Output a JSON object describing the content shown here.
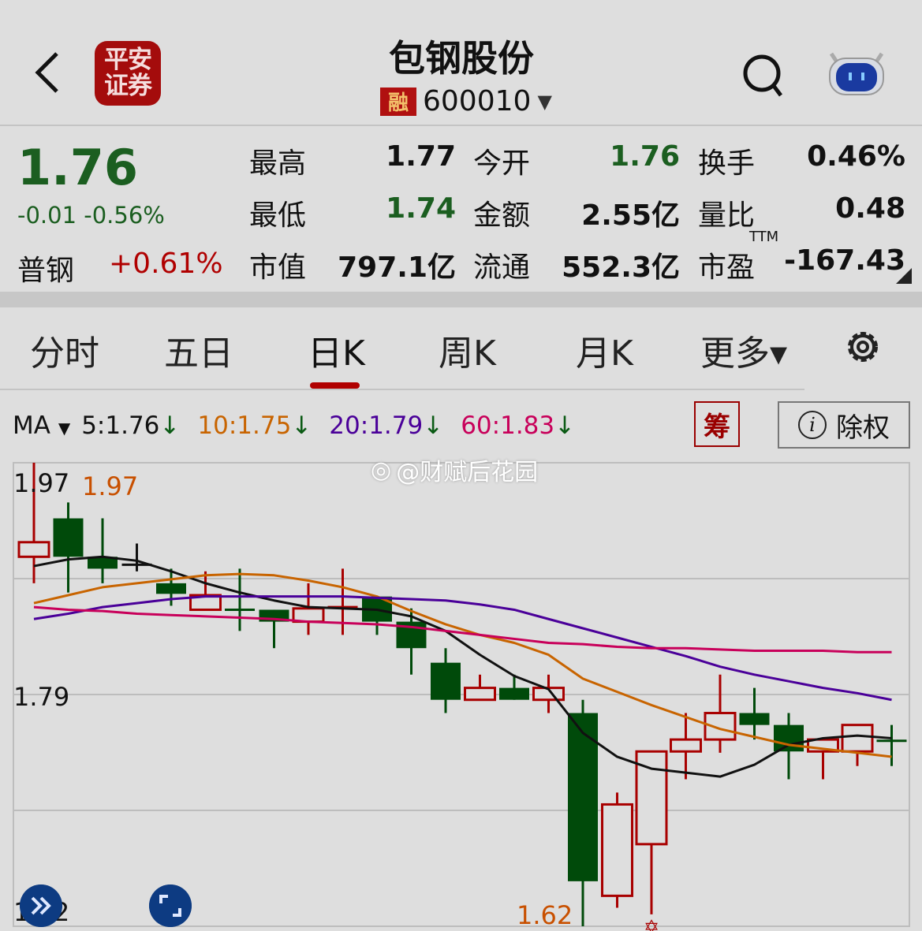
{
  "header": {
    "title": "包钢股份",
    "code": "600010",
    "margin_badge": "融",
    "broker_logo": "平安证券",
    "icons": [
      "back-icon",
      "search-icon",
      "robot-assistant-icon",
      "dropdown-triangle-icon"
    ]
  },
  "quote": {
    "price": "1.76",
    "change": "-0.01",
    "change_pct": "-0.56%",
    "sector_name": "普钢",
    "sector_change": "+0.61%",
    "rows": [
      [
        {
          "label": "最高",
          "value": "1.77",
          "color": "black"
        },
        {
          "label": "今开",
          "value": "1.76",
          "color": "green"
        },
        {
          "label": "换手",
          "value": "0.46%",
          "color": "black"
        }
      ],
      [
        {
          "label": "最低",
          "value": "1.74",
          "color": "green"
        },
        {
          "label": "金额",
          "value": "2.55亿",
          "color": "black"
        },
        {
          "label": "量比",
          "value": "0.48",
          "color": "black"
        }
      ],
      [
        {
          "label": "市值",
          "value": "797.1亿",
          "color": "black"
        },
        {
          "label": "流通",
          "value": "552.3亿",
          "color": "black"
        },
        {
          "label": "市盈",
          "value": "-167.43",
          "color": "black"
        }
      ]
    ],
    "pe_superscript": "TTM"
  },
  "tabs": [
    {
      "label": "分时"
    },
    {
      "label": "五日"
    },
    {
      "label": "日K",
      "active": true
    },
    {
      "label": "周K"
    },
    {
      "label": "月K"
    },
    {
      "label": "更多▾"
    }
  ],
  "indicator": {
    "name": "MA",
    "items": [
      {
        "text": "5:1.76",
        "color": "#111111"
      },
      {
        "text": "10:1.75",
        "color": "#c86400"
      },
      {
        "text": "20:1.79",
        "color": "#4a0099"
      },
      {
        "text": "60:1.83",
        "color": "#c8005a"
      }
    ],
    "arrow": "↓",
    "chip_button": "筹",
    "adjust_button": "除权"
  },
  "watermark": "@财赋后花园",
  "colors": {
    "up": "#a80000",
    "down": "#004a0a",
    "accent": "#b00000",
    "green_text": "#1b5e20"
  },
  "chart_data": {
    "type": "candlestick",
    "ylim": [
      1.62,
      1.97
    ],
    "y_tick_labels": [
      "1.97",
      "1.79",
      "1.62"
    ],
    "high_label": "1.97",
    "low_label": "1.62",
    "candles": [
      {
        "o": 1.899,
        "c": 1.91,
        "h": 1.97,
        "l": 1.879
      },
      {
        "o": 1.928,
        "c": 1.899,
        "h": 1.94,
        "l": 1.872
      },
      {
        "o": 1.899,
        "c": 1.89,
        "h": 1.928,
        "l": 1.879
      },
      {
        "o": 1.893,
        "c": 1.893,
        "h": 1.909,
        "l": 1.888,
        "flat": "black"
      },
      {
        "o": 1.879,
        "c": 1.871,
        "h": 1.89,
        "l": 1.862
      },
      {
        "o": 1.859,
        "c": 1.87,
        "h": 1.888,
        "l": 1.859
      },
      {
        "o": 1.859,
        "c": 1.859,
        "h": 1.89,
        "l": 1.843,
        "flat": "down"
      },
      {
        "o": 1.859,
        "c": 1.85,
        "h": 1.859,
        "l": 1.83
      },
      {
        "o": 1.85,
        "c": 1.86,
        "h": 1.879,
        "l": 1.84
      },
      {
        "o": 1.861,
        "c": 1.861,
        "h": 1.89,
        "l": 1.84,
        "flat": "up"
      },
      {
        "o": 1.869,
        "c": 1.85,
        "h": 1.869,
        "l": 1.84
      },
      {
        "o": 1.85,
        "c": 1.83,
        "h": 1.86,
        "l": 1.81
      },
      {
        "o": 1.819,
        "c": 1.791,
        "h": 1.83,
        "l": 1.781
      },
      {
        "o": 1.791,
        "c": 1.8,
        "h": 1.81,
        "l": 1.791
      },
      {
        "o": 1.8,
        "c": 1.791,
        "h": 1.81,
        "l": 1.791
      },
      {
        "o": 1.791,
        "c": 1.8,
        "h": 1.81,
        "l": 1.781
      },
      {
        "o": 1.781,
        "c": 1.654,
        "h": 1.791,
        "l": 1.62
      },
      {
        "o": 1.643,
        "c": 1.712,
        "h": 1.721,
        "l": 1.634
      },
      {
        "o": 1.682,
        "c": 1.752,
        "h": 1.752,
        "l": 1.629,
        "marker": "star"
      },
      {
        "o": 1.752,
        "c": 1.761,
        "h": 1.781,
        "l": 1.731
      },
      {
        "o": 1.761,
        "c": 1.781,
        "h": 1.81,
        "l": 1.751
      },
      {
        "o": 1.781,
        "c": 1.772,
        "h": 1.8,
        "l": 1.761
      },
      {
        "o": 1.772,
        "c": 1.752,
        "h": 1.781,
        "l": 1.731
      },
      {
        "o": 1.752,
        "c": 1.761,
        "h": 1.761,
        "l": 1.731
      },
      {
        "o": 1.752,
        "c": 1.772,
        "h": 1.772,
        "l": 1.741
      },
      {
        "o": 1.76,
        "c": 1.76,
        "h": 1.772,
        "l": 1.741,
        "flat": "down"
      }
    ],
    "series": [
      {
        "name": "MA5",
        "color": "#111111",
        "values": [
          1.892,
          1.897,
          1.899,
          1.896,
          1.888,
          1.879,
          1.872,
          1.866,
          1.861,
          1.86,
          1.859,
          1.854,
          1.843,
          1.825,
          1.809,
          1.799,
          1.766,
          1.748,
          1.739,
          1.736,
          1.733,
          1.742,
          1.757,
          1.762,
          1.764,
          1.762
        ]
      },
      {
        "name": "MA10",
        "color": "#c86400",
        "values": [
          1.864,
          1.87,
          1.876,
          1.879,
          1.882,
          1.885,
          1.886,
          1.885,
          1.881,
          1.876,
          1.869,
          1.858,
          1.848,
          1.84,
          1.834,
          1.825,
          1.807,
          1.797,
          1.787,
          1.778,
          1.769,
          1.763,
          1.757,
          1.754,
          1.751,
          1.748
        ]
      },
      {
        "name": "MA20",
        "color": "#4a0099",
        "values": [
          1.852,
          1.856,
          1.861,
          1.864,
          1.867,
          1.869,
          1.869,
          1.869,
          1.869,
          1.869,
          1.868,
          1.867,
          1.866,
          1.863,
          1.859,
          1.852,
          1.845,
          1.838,
          1.831,
          1.824,
          1.816,
          1.81,
          1.805,
          1.8,
          1.796,
          1.791
        ]
      },
      {
        "name": "MA60",
        "color": "#c8005a",
        "values": [
          1.861,
          1.859,
          1.858,
          1.856,
          1.855,
          1.854,
          1.853,
          1.852,
          1.85,
          1.849,
          1.848,
          1.846,
          1.843,
          1.84,
          1.837,
          1.834,
          1.833,
          1.831,
          1.83,
          1.83,
          1.829,
          1.828,
          1.828,
          1.828,
          1.827,
          1.827
        ]
      }
    ],
    "grid": true
  }
}
